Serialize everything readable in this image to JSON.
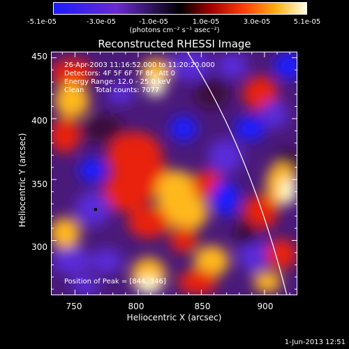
{
  "colorbar": {
    "ticks": [
      "-5.1e-05",
      "-3.0e-05",
      "-1.0e-05",
      "1.0e-05",
      "3.0e-05",
      "5.1e-05"
    ],
    "unit": "(photons cm⁻² s⁻¹ asec⁻²)",
    "range": [
      -5.1e-05,
      5.1e-05
    ]
  },
  "title": "Reconstructed RHESSI Image",
  "info": {
    "line1": "26-Apr-2003 11:16:52.000 to 11:20:20.000",
    "line2": "Detectors: 4F 5F 6F 7F 8F, Att 0",
    "line3": "Energy Range: 12.0 - 25.0 keV",
    "line4": "Clean     Total counts: 7077",
    "peak": "Position of Peak = [844, 346]"
  },
  "footer": "1-Jun-2013 12:51",
  "chart_data": {
    "type": "heatmap",
    "title": "Reconstructed RHESSI Image",
    "xlabel": "Heliocentric X (arcsec)",
    "ylabel": "Heliocentric Y (arcsec)",
    "xlim": [
      731,
      926
    ],
    "ylim": [
      255,
      455
    ],
    "xticks": [
      750,
      800,
      850,
      900
    ],
    "yticks": [
      300,
      350,
      400,
      450
    ],
    "colorbar_range": [
      -5.1e-05,
      5.1e-05
    ],
    "peak_position": [
      844,
      346
    ],
    "colors": {
      "negative_low": "#1a1aff",
      "mid_negative": "#5a2ad8",
      "zero": "#3a0a3a",
      "positive_mid": "#e8200a",
      "positive_high": "#ffb81a",
      "max": "#ffffd0"
    }
  }
}
